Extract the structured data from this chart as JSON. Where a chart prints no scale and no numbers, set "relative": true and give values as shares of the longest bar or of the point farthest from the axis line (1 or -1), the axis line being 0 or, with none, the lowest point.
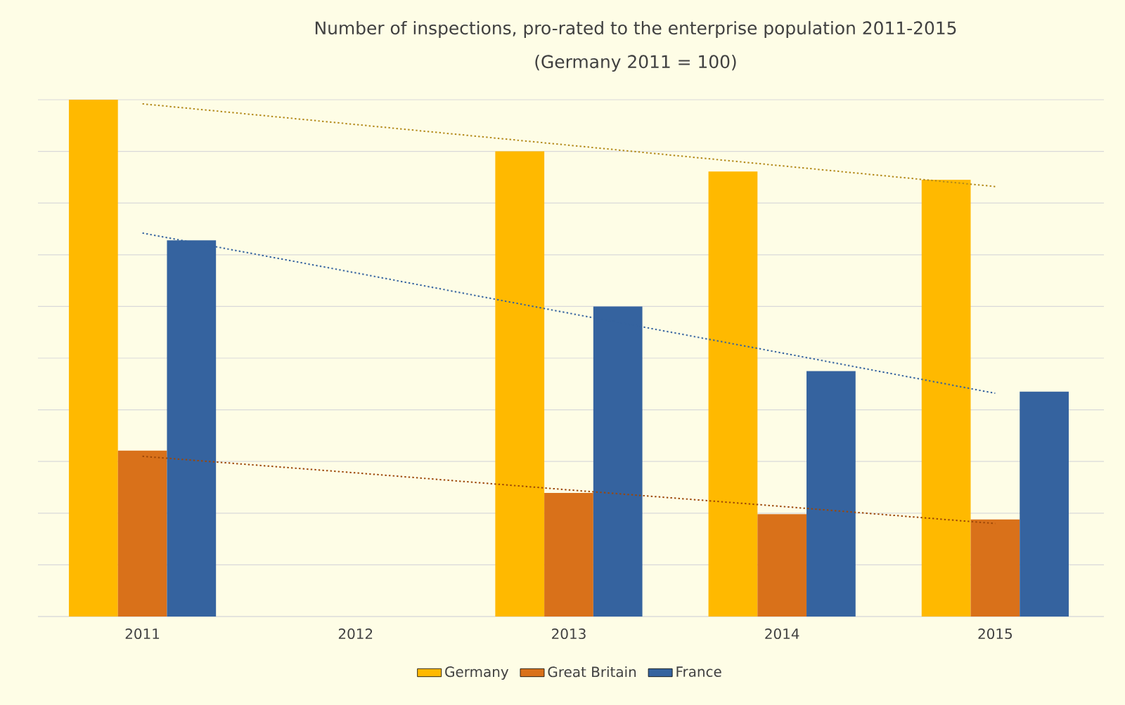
{
  "chart_data": {
    "type": "bar",
    "title": "Number of inspections, pro-rated to the enterprise population 2011-2015",
    "subtitle": "(Germany 2011 = 100)",
    "categories": [
      "2011",
      "2012",
      "2013",
      "2014",
      "2015"
    ],
    "relative": true,
    "grid": "y",
    "legend": "bottom",
    "series": [
      {
        "name": "Germany",
        "color": "#ffb900",
        "values": [
          1.0,
          null,
          0.9,
          0.861,
          0.845
        ]
      },
      {
        "name": "Great Britain",
        "color": "#d9711a",
        "values": [
          0.321,
          null,
          0.239,
          0.198,
          0.188
        ]
      },
      {
        "name": "France",
        "color": "#35639f",
        "values": [
          0.728,
          null,
          0.6,
          0.475,
          0.435
        ]
      },
      {
        "type": "line",
        "color": "#b38a1a",
        "line_style": "dotted",
        "marker": "none",
        "values": [
          0.992,
          0.952,
          0.912,
          0.872,
          0.832
        ]
      },
      {
        "type": "line",
        "color": "#9c4708",
        "line_style": "dotted",
        "marker": "none",
        "values": [
          0.31,
          0.278,
          0.245,
          0.213,
          0.18
        ]
      },
      {
        "type": "line",
        "color": "#35639f",
        "line_style": "dotted",
        "marker": "none",
        "values": [
          0.742,
          0.665,
          0.587,
          0.51,
          0.432
        ]
      }
    ]
  }
}
